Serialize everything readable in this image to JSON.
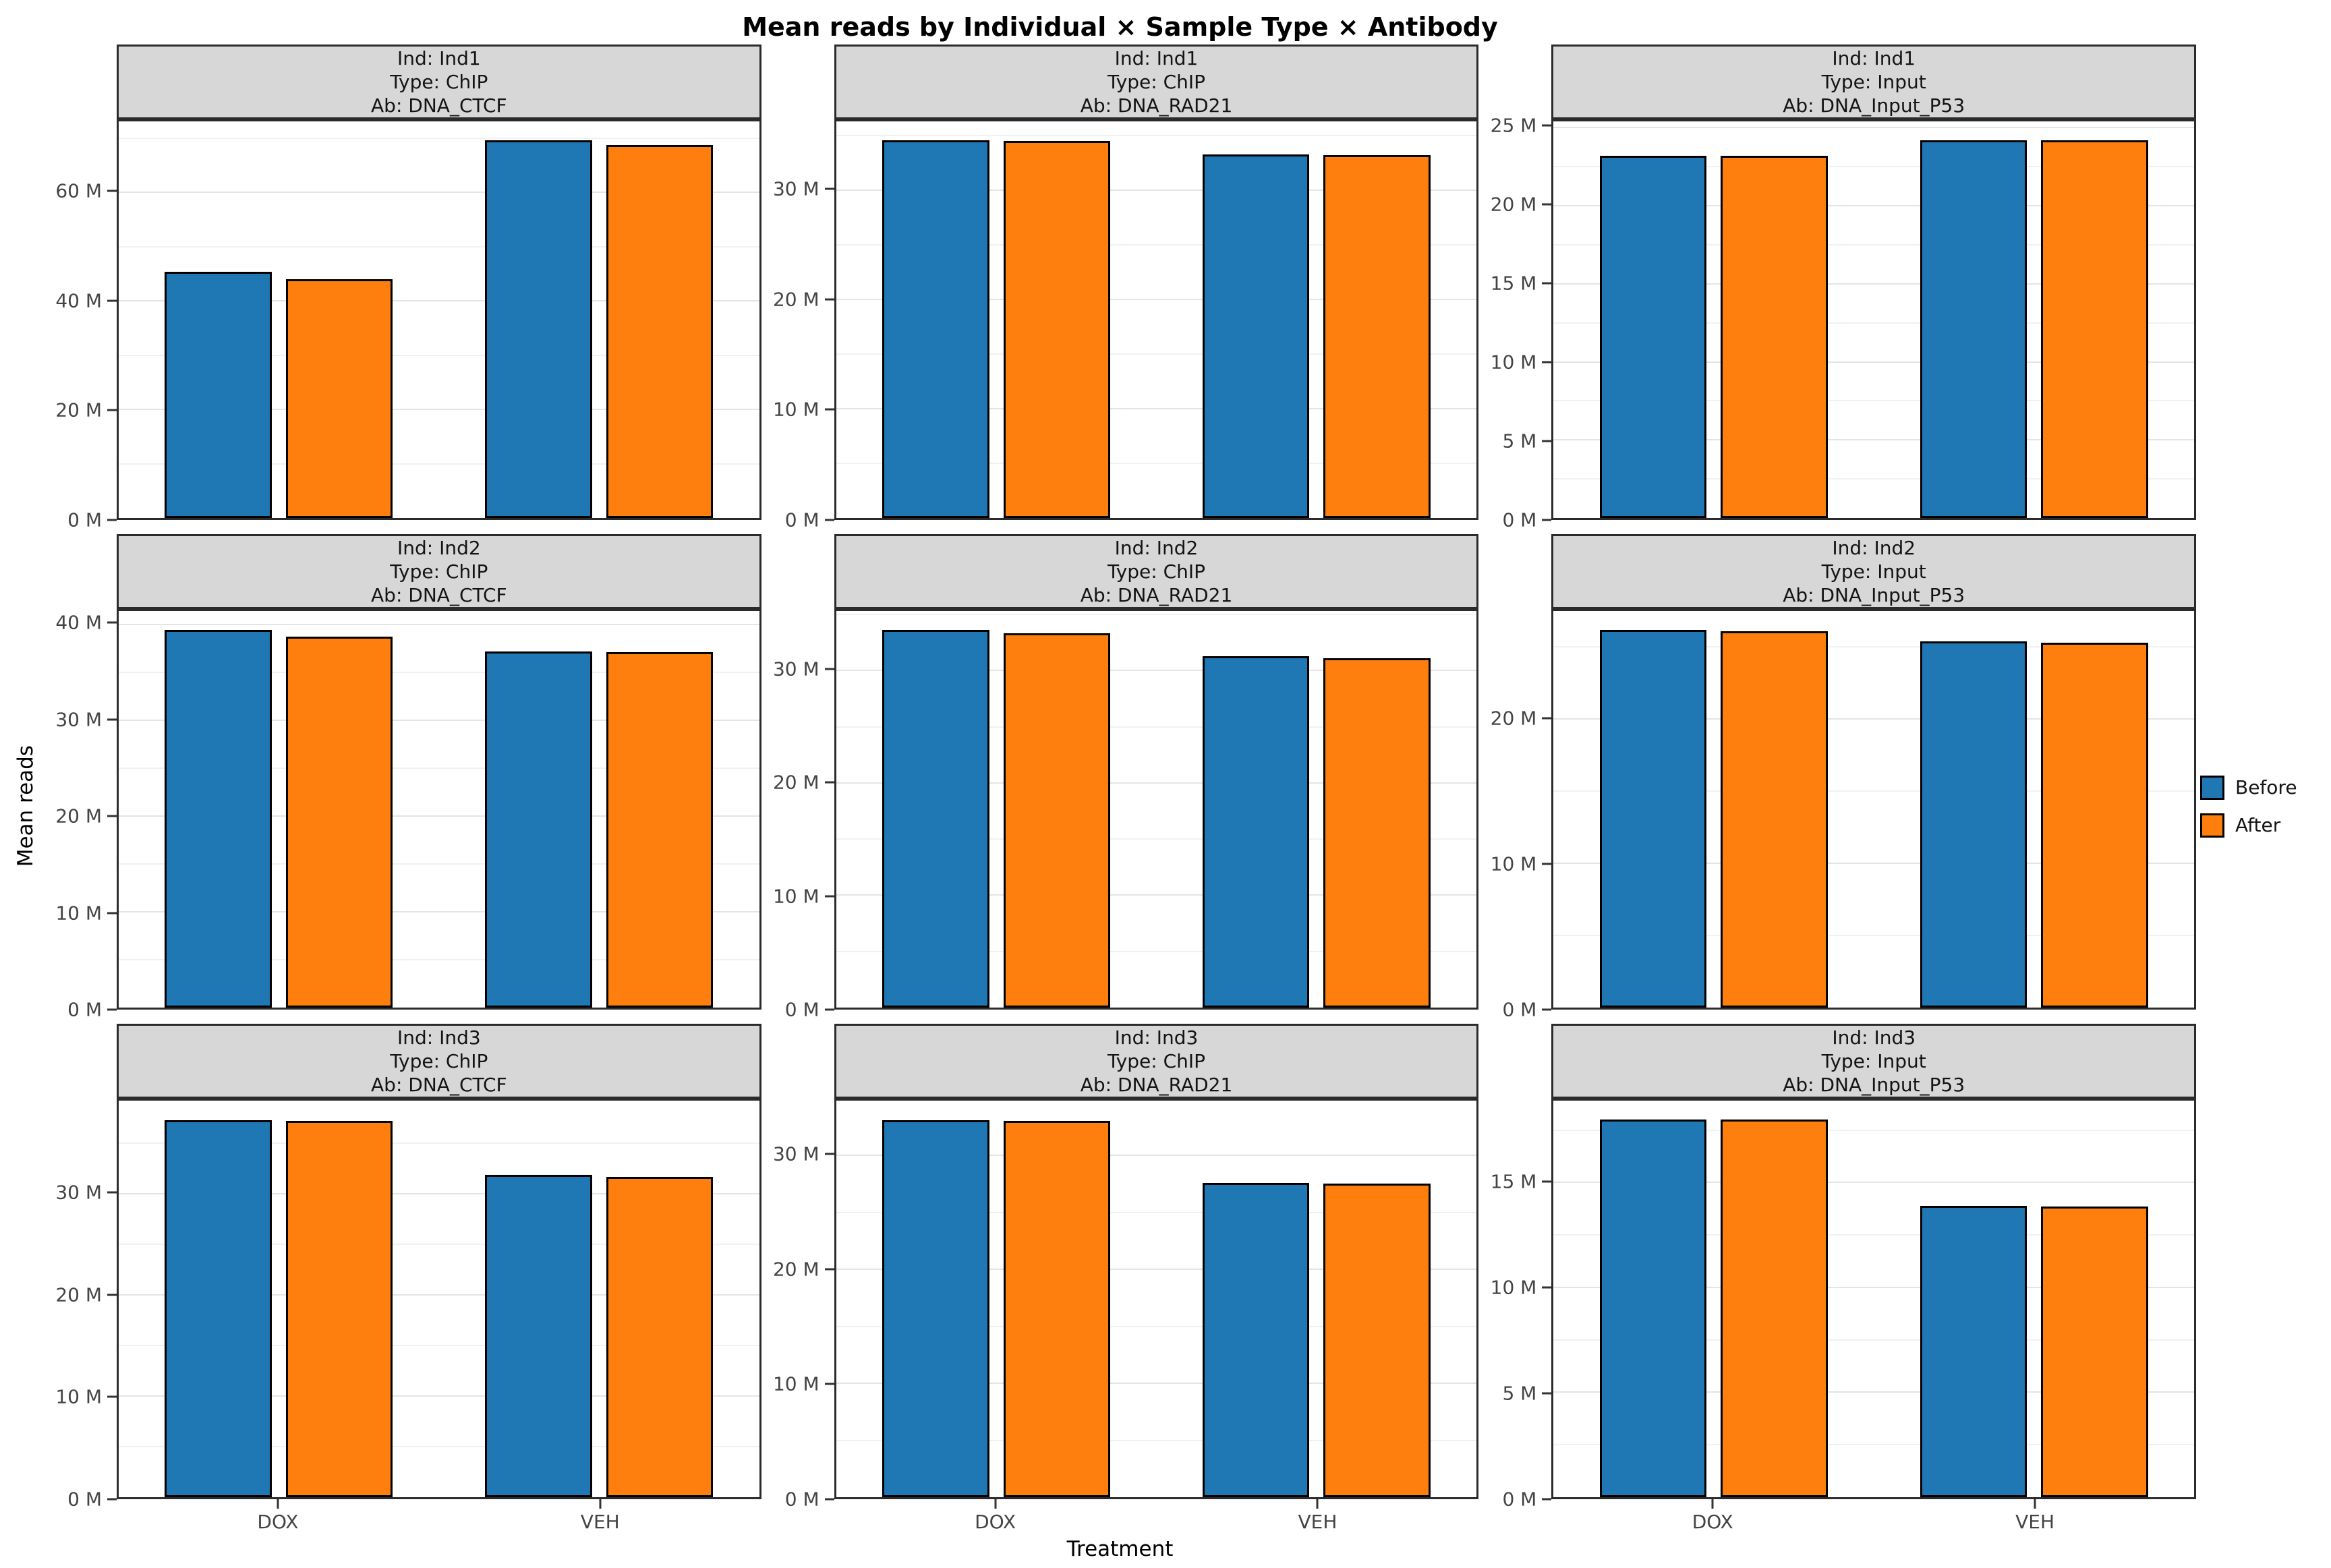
{
  "chart_data": {
    "type": "bar",
    "title": "Mean reads by Individual × Sample Type × Antibody",
    "xlabel": "Treatment",
    "ylabel": "Mean reads",
    "value_unit": "M",
    "grid": true,
    "legend_position": "right",
    "categories": [
      "DOX",
      "VEH"
    ],
    "series": [
      {
        "name": "Before",
        "color": "#1f77b4"
      },
      {
        "name": "After",
        "color": "#ff7f0e"
      }
    ],
    "facets": [
      {
        "strip": [
          "Ind: Ind1",
          "Type: ChIP",
          "Ab: DNA_CTCF"
        ],
        "ymax": 73.1,
        "yticks": [
          {
            "v": 0,
            "label": "0 M"
          },
          {
            "v": 20,
            "label": "20 M"
          },
          {
            "v": 40,
            "label": "40 M"
          },
          {
            "v": 60,
            "label": "60 M"
          }
        ],
        "groups": [
          {
            "category": "DOX",
            "values": {
              "Before": 45.4,
              "After": 44.0
            }
          },
          {
            "category": "VEH",
            "values": {
              "Before": 69.6,
              "After": 68.8
            }
          }
        ]
      },
      {
        "strip": [
          "Ind: Ind1",
          "Type: ChIP",
          "Ab: DNA_RAD21"
        ],
        "ymax": 36.3,
        "yticks": [
          {
            "v": 0,
            "label": "0 M"
          },
          {
            "v": 10,
            "label": "10 M"
          },
          {
            "v": 20,
            "label": "20 M"
          },
          {
            "v": 30,
            "label": "30 M"
          }
        ],
        "groups": [
          {
            "category": "DOX",
            "values": {
              "Before": 34.6,
              "After": 34.5
            }
          },
          {
            "category": "VEH",
            "values": {
              "Before": 33.3,
              "After": 33.2
            }
          }
        ]
      },
      {
        "strip": [
          "Ind: Ind1",
          "Type: Input",
          "Ab: DNA_Input_P53"
        ],
        "ymax": 25.4,
        "yticks": [
          {
            "v": 0,
            "label": "0 M"
          },
          {
            "v": 5,
            "label": "5 M"
          },
          {
            "v": 10,
            "label": "10 M"
          },
          {
            "v": 15,
            "label": "15 M"
          },
          {
            "v": 20,
            "label": "20 M"
          },
          {
            "v": 25,
            "label": "25 M"
          }
        ],
        "groups": [
          {
            "category": "DOX",
            "values": {
              "Before": 23.2,
              "After": 23.2
            }
          },
          {
            "category": "VEH",
            "values": {
              "Before": 24.2,
              "After": 24.2
            }
          }
        ]
      },
      {
        "strip": [
          "Ind: Ind2",
          "Type: ChIP",
          "Ab: DNA_CTCF"
        ],
        "ymax": 41.4,
        "yticks": [
          {
            "v": 0,
            "label": "0 M"
          },
          {
            "v": 10,
            "label": "10 M"
          },
          {
            "v": 20,
            "label": "20 M"
          },
          {
            "v": 30,
            "label": "30 M"
          },
          {
            "v": 40,
            "label": "40 M"
          }
        ],
        "groups": [
          {
            "category": "DOX",
            "values": {
              "Before": 39.4,
              "After": 38.7
            }
          },
          {
            "category": "VEH",
            "values": {
              "Before": 37.2,
              "After": 37.1
            }
          }
        ]
      },
      {
        "strip": [
          "Ind: Ind2",
          "Type: ChIP",
          "Ab: DNA_RAD21"
        ],
        "ymax": 35.3,
        "yticks": [
          {
            "v": 0,
            "label": "0 M"
          },
          {
            "v": 10,
            "label": "10 M"
          },
          {
            "v": 20,
            "label": "20 M"
          },
          {
            "v": 30,
            "label": "30 M"
          }
        ],
        "groups": [
          {
            "category": "DOX",
            "values": {
              "Before": 33.6,
              "After": 33.3
            }
          },
          {
            "category": "VEH",
            "values": {
              "Before": 31.3,
              "After": 31.1
            }
          }
        ]
      },
      {
        "strip": [
          "Ind: Ind2",
          "Type: Input",
          "Ab: DNA_Input_P53"
        ],
        "ymax": 27.5,
        "yticks": [
          {
            "v": 0,
            "label": "0 M"
          },
          {
            "v": 10,
            "label": "10 M"
          },
          {
            "v": 20,
            "label": "20 M"
          }
        ],
        "groups": [
          {
            "category": "DOX",
            "values": {
              "Before": 26.2,
              "After": 26.1
            }
          },
          {
            "category": "VEH",
            "values": {
              "Before": 25.4,
              "After": 25.3
            }
          }
        ]
      },
      {
        "strip": [
          "Ind: Ind3",
          "Type: ChIP",
          "Ab: DNA_CTCF"
        ],
        "ymax": 39.2,
        "yticks": [
          {
            "v": 0,
            "label": "0 M"
          },
          {
            "v": 10,
            "label": "10 M"
          },
          {
            "v": 20,
            "label": "20 M"
          },
          {
            "v": 30,
            "label": "30 M"
          }
        ],
        "groups": [
          {
            "category": "DOX",
            "values": {
              "Before": 37.3,
              "After": 37.2
            }
          },
          {
            "category": "VEH",
            "values": {
              "Before": 31.9,
              "After": 31.7
            }
          }
        ]
      },
      {
        "strip": [
          "Ind: Ind3",
          "Type: ChIP",
          "Ab: DNA_RAD21"
        ],
        "ymax": 34.8,
        "yticks": [
          {
            "v": 0,
            "label": "0 M"
          },
          {
            "v": 10,
            "label": "10 M"
          },
          {
            "v": 20,
            "label": "20 M"
          },
          {
            "v": 30,
            "label": "30 M"
          }
        ],
        "groups": [
          {
            "category": "DOX",
            "values": {
              "Before": 33.1,
              "After": 33.0
            }
          },
          {
            "category": "VEH",
            "values": {
              "Before": 27.6,
              "After": 27.5
            }
          }
        ]
      },
      {
        "strip": [
          "Ind: Ind3",
          "Type: Input",
          "Ab: DNA_Input_P53"
        ],
        "ymax": 18.9,
        "yticks": [
          {
            "v": 0,
            "label": "0 M"
          },
          {
            "v": 5,
            "label": "5 M"
          },
          {
            "v": 10,
            "label": "10 M"
          },
          {
            "v": 15,
            "label": "15 M"
          }
        ],
        "groups": [
          {
            "category": "DOX",
            "values": {
              "Before": 18.0,
              "After": 18.0
            }
          },
          {
            "category": "VEH",
            "values": {
              "Before": 13.9,
              "After": 13.85
            }
          }
        ]
      }
    ]
  }
}
